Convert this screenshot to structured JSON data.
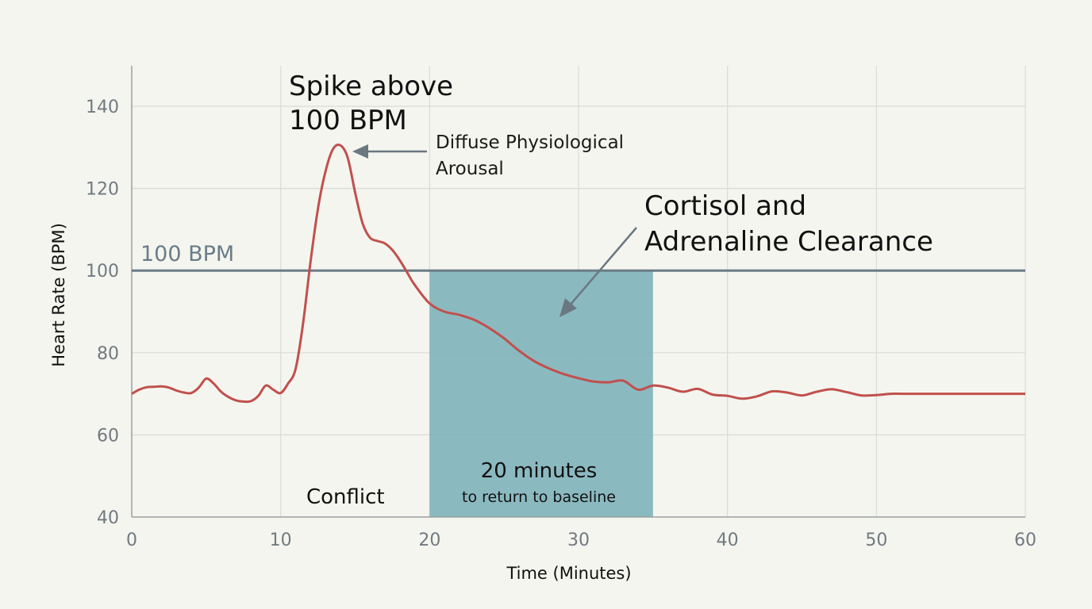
{
  "chart_data": {
    "type": "line",
    "xlabel": "Time (Minutes)",
    "ylabel": "Heart Rate (BPM)",
    "xlim": [
      0,
      60
    ],
    "ylim": [
      40,
      150
    ],
    "xticks": [
      0,
      10,
      20,
      30,
      40,
      50,
      60
    ],
    "yticks": [
      40,
      60,
      80,
      100,
      120,
      140
    ],
    "grid": true,
    "colors": {
      "line": "#c0504d",
      "reference": "#6a7c87",
      "shade": "#7fb3ba",
      "grid": "#d9dbd6",
      "arrow": "#6a7880"
    },
    "series": [
      {
        "x": [
          0,
          0.5,
          1,
          1.5,
          2,
          2.5,
          3,
          3.5,
          4,
          4.5,
          5,
          5.5,
          6,
          6.5,
          7,
          7.5,
          8,
          8.5,
          9,
          9.5,
          10,
          10.5,
          11,
          11.5,
          12,
          12.5,
          13,
          13.5,
          14,
          14.5,
          15,
          15.5,
          16,
          16.5,
          17,
          17.5,
          18,
          18.5,
          19,
          20,
          21,
          22,
          23,
          24,
          25,
          26,
          27,
          28,
          29,
          30,
          31,
          32,
          33,
          34,
          35,
          36,
          37,
          38,
          39,
          40,
          41,
          42,
          43,
          44,
          45,
          46,
          47,
          48,
          49,
          50,
          51,
          52,
          55,
          60
        ],
        "values": [
          70,
          71,
          71.6,
          71.7,
          71.8,
          71.5,
          70.8,
          70.3,
          70.2,
          71.5,
          73.7,
          72.5,
          70.5,
          69.2,
          68.4,
          68.1,
          68.2,
          69.5,
          72,
          71,
          70.2,
          72.5,
          76,
          87,
          102,
          115,
          124,
          129.5,
          130.5,
          127.5,
          119,
          111.5,
          108,
          107.2,
          106.6,
          105,
          102.5,
          99.5,
          96.5,
          92,
          90,
          89.2,
          88,
          86,
          83.5,
          80.5,
          78,
          76.2,
          74.8,
          73.8,
          73,
          72.8,
          73.2,
          71,
          72,
          71.5,
          70.5,
          71.2,
          69.8,
          69.5,
          68.8,
          69.4,
          70.6,
          70.3,
          69.6,
          70.5,
          71.1,
          70.4,
          69.6,
          69.7,
          70,
          70,
          70,
          70
        ]
      }
    ],
    "reference_line": {
      "y": 100,
      "label": "100 BPM"
    },
    "shaded_region": {
      "x_start": 20,
      "x_end": 35,
      "y_start": 40,
      "y_end": 100
    },
    "annotations": {
      "spike_line1": "Spike above",
      "spike_line2": "100 BPM",
      "diffuse_line1": "Diffuse Physiological",
      "diffuse_line2": "Arousal",
      "cortisol_line1": "Cortisol and",
      "cortisol_line2": "Adrenaline Clearance",
      "conflict": "Conflict",
      "minutes_big": "20 minutes",
      "minutes_small": "to return to baseline"
    }
  }
}
